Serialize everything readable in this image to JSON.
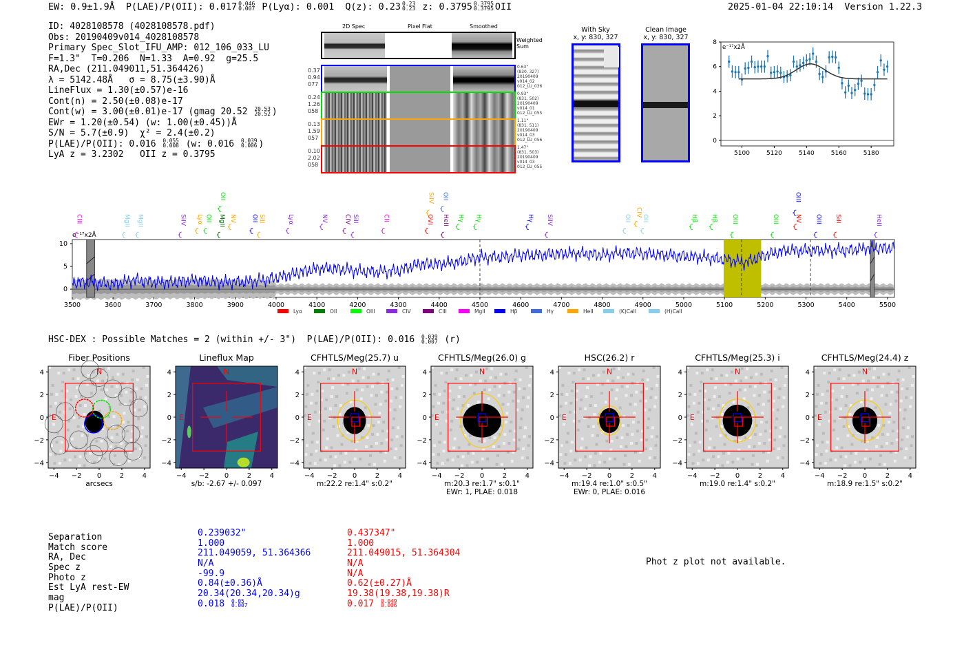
{
  "header": {
    "ew": "EW: 0.9±1.9Å",
    "plae_label": "P(LAE)/P(OII): 0.017",
    "plae_hi": "0.046",
    "plae_lo": "0.007",
    "plya": "P(Lyα): 0.001",
    "qz_label": "Q(z): 0.23",
    "qz_hi": "0.23",
    "qz_lo": "0.23",
    "z_label": "z: 0.3795",
    "z_hi": "0.3795",
    "z_lo": "0.3795",
    "z_line": "OII",
    "timestamp": "2025-01-04 22:10:14",
    "version": "Version 1.22.3"
  },
  "info": {
    "id": "ID: 4028108578 (4028108578.pdf)",
    "obs": "Obs: 20190409v014_4028108578",
    "primary": "Primary Spec_Slot_IFU_AMP: 012_106_033_LU",
    "params": "F=1.3\"  T=0.206  N=1.33  A=0.92  g=25.5",
    "radec": "RA,Dec (211.049011,51.364426)",
    "lambda": "λ = 5142.48Å   σ = 8.75(±3.90)Å",
    "lineflux": "LineFlux = 1.30(±0.57)e-16",
    "cont_n": "Cont(n) = 2.50(±0.08)e-17",
    "cont_w": "Cont(w) = 3.00(±0.01)e-17 (gmag 20.52",
    "cont_w_hi": "20.53",
    "cont_w_lo": "20.52",
    "cont_w_end": ")",
    "ewr": "EWr = 1.20(±0.54) (w: 1.00(±0.45))Å",
    "sn": "S/N = 5.7(±0.9)  χ² = 2.4(±0.2)",
    "plae": "P(LAE)/P(OII): 0.016",
    "plae_hi": "0.055",
    "plae_lo": "0.008",
    "plae_w": "(w: 0.016",
    "plae_w_hi": "0.039",
    "plae_w_lo": "0.006",
    "plae_w_end": ")",
    "z": "LyA z = 3.2302   OII z = 0.3795"
  },
  "spec2d": {
    "col_titles": [
      "2D Spec",
      "Pixel Flat",
      "Smoothed"
    ],
    "weighted_label": "Weighted\nSum",
    "rows": [
      {
        "color": "#0000ff",
        "left": "0.37\n0.94\n077",
        "right": "0.63\"\n(830, 327)\n20190409\nv014_02\n012_LU_036"
      },
      {
        "color": "#00e000",
        "left": "0.24\n1.26\n058",
        "right": "0.93\"\n(831, 502)\n20190409\nv014_01\n012_LU_055"
      },
      {
        "color": "#ffa500",
        "left": "0.13\n1.59\n057",
        "right": "1.11\"\n(831, 511)\n20190409\nv014_03\n012_LU_056"
      },
      {
        "color": "#ff0000",
        "left": "0.10\n2.02\n058",
        "right": "1.47\"\n(831, 503)\n20190409\nv014_03\n012_LU_055"
      }
    ]
  },
  "cutouts": [
    {
      "title": "With Sky\nx, y: 830, 327"
    },
    {
      "title": "Clean Image\nx, y: 830, 327"
    }
  ],
  "chart_data": [
    {
      "type": "scatter",
      "title": "",
      "ylabel": "e⁻¹⁷x2Å",
      "xlim": [
        5087,
        5194
      ],
      "ylim": [
        -0.45,
        8
      ],
      "xticks": [
        "5100",
        "5120",
        "5140",
        "5160",
        "5180"
      ],
      "yticks": [
        "0",
        "2",
        "4",
        "6",
        "8"
      ],
      "x": [
        5092,
        5094,
        5096,
        5098,
        5100,
        5102,
        5104,
        5106,
        5108,
        5110,
        5112,
        5114,
        5116,
        5118,
        5120,
        5122,
        5124,
        5126,
        5128,
        5130,
        5132,
        5134,
        5136,
        5138,
        5140,
        5142,
        5144,
        5146,
        5148,
        5150,
        5152,
        5154,
        5156,
        5158,
        5160,
        5162,
        5164,
        5166,
        5168,
        5170,
        5172,
        5174,
        5176,
        5178,
        5180,
        5182,
        5184,
        5186,
        5188,
        5190
      ],
      "y": [
        6.4,
        5.6,
        5.55,
        5.55,
        4.95,
        5.85,
        5.9,
        6.4,
        5.95,
        6.0,
        6.0,
        6.0,
        6.85,
        5.5,
        5.55,
        5.6,
        5.5,
        5.15,
        5.2,
        5.3,
        6.4,
        6.0,
        6.1,
        6.3,
        6.5,
        6.6,
        7.05,
        6.4,
        5.4,
        5.15,
        5.6,
        6.75,
        6.8,
        6.75,
        5.9,
        4.65,
        3.9,
        4.45,
        3.85,
        4.1,
        4.6,
        4.85,
        3.8,
        3.75,
        3.75,
        4.5,
        5.55,
        6.5,
        5.75,
        6.0
      ],
      "yerr": 0.5,
      "fit": {
        "continuum": 5.0,
        "center": 5142.48,
        "sigma": 8.75,
        "amplitude": 1.22,
        "range": [
          5098,
          5190
        ]
      },
      "point_color": "#1f77b4",
      "fit_color": "#333333"
    },
    {
      "type": "line",
      "ylabel": "e⁻¹⁷x2Å",
      "xlim": [
        3500,
        5517
      ],
      "ylim": [
        -1.8,
        10.9
      ],
      "xticks": [
        "3500",
        "3600",
        "3700",
        "3800",
        "3900",
        "4000",
        "4100",
        "4200",
        "4300",
        "4400",
        "4500",
        "4600",
        "4700",
        "4800",
        "4900",
        "5000",
        "5100",
        "5200",
        "5300",
        "5400",
        "5500"
      ],
      "yticks": [
        "0",
        "5",
        "10"
      ],
      "x_anchor": [
        3500,
        3550,
        3600,
        3650,
        3700,
        3750,
        3800,
        3850,
        3900,
        3950,
        4000,
        4050,
        4100,
        4150,
        4200,
        4250,
        4300,
        4350,
        4400,
        4450,
        4500,
        4550,
        4600,
        4650,
        4700,
        4750,
        4800,
        4850,
        4900,
        4950,
        5000,
        5050,
        5100,
        5150,
        5200,
        5250,
        5300,
        5350,
        5400,
        5450,
        5500
      ],
      "flux_anchor": [
        1.5,
        1.5,
        1.0,
        2.0,
        1.5,
        1.5,
        2.0,
        1.5,
        1.5,
        1.8,
        2.5,
        3.5,
        4.5,
        4.5,
        4.0,
        3.8,
        4.0,
        5.5,
        5.5,
        6.0,
        7.0,
        7.0,
        7.5,
        7.5,
        7.8,
        7.8,
        7.5,
        8.0,
        7.8,
        7.5,
        7.2,
        7.0,
        6.5,
        5.8,
        7.5,
        8.5,
        8.5,
        8.5,
        8.5,
        9.0,
        9.0
      ],
      "line_color": "#0000ff",
      "highlight_range": [
        5098,
        5190
      ],
      "highlight_color": "#bfbf00",
      "dashed_lines": [
        4500,
        5142,
        5311
      ],
      "masked_ranges": [
        [
          3535,
          3555
        ],
        [
          5458,
          5468
        ]
      ],
      "line_labels": [
        {
          "name": "CIII",
          "wave": 3508,
          "color": "#ff00ff",
          "row": 0
        },
        {
          "name": "MgII",
          "wave": 3625,
          "color": "#87ceeb",
          "row": 0
        },
        {
          "name": "MgII",
          "wave": 3658,
          "color": "#87ceeb",
          "row": 0
        },
        {
          "name": "SiIV",
          "wave": 3763,
          "color": "#8a2be2",
          "row": 0
        },
        {
          "name": "Lyα",
          "wave": 3804,
          "color": "#ffa500",
          "row": 0
        },
        {
          "name": "OII",
          "wave": 3825,
          "color": "#00e000",
          "row": 0
        },
        {
          "name": "MgII",
          "wave": 3858,
          "color": "#006400",
          "row": 0
        },
        {
          "name": "OII",
          "wave": 3860,
          "color": "#00e000",
          "row": 1
        },
        {
          "name": "NV",
          "wave": 3885,
          "color": "#ffa500",
          "row": 0
        },
        {
          "name": "OII",
          "wave": 3938,
          "color": "#0000ff",
          "row": 0
        },
        {
          "name": "SiII",
          "wave": 3956,
          "color": "#ffa500",
          "row": 0
        },
        {
          "name": "Lyα",
          "wave": 4027,
          "color": "#8a2be2",
          "row": 0
        },
        {
          "name": "NV",
          "wave": 4110,
          "color": "#8a2be2",
          "row": 0
        },
        {
          "name": "CIV",
          "wave": 4166,
          "color": "#800080",
          "row": 0
        },
        {
          "name": "SiII",
          "wave": 4186,
          "color": "#8a2be2",
          "row": 0
        },
        {
          "name": "CII",
          "wave": 4261,
          "color": "#ff00ff",
          "row": 0
        },
        {
          "name": "OVI",
          "wave": 4368,
          "color": "#ff0000",
          "row": 0
        },
        {
          "name": "SiIV",
          "wave": 4371,
          "color": "#ffa500",
          "row": 1
        },
        {
          "name": "OII",
          "wave": 4406,
          "color": "#4169e1",
          "row": 1
        },
        {
          "name": "HeII",
          "wave": 4407,
          "color": "#800080",
          "row": 0
        },
        {
          "name": "Hγ",
          "wave": 4444,
          "color": "#00e000",
          "row": 0
        },
        {
          "name": "Hγ",
          "wave": 4487,
          "color": "#00e000",
          "row": 0
        },
        {
          "name": "Hγ",
          "wave": 4615,
          "color": "#0000ff",
          "row": 0
        },
        {
          "name": "SiIV",
          "wave": 4662,
          "color": "#8a2be2",
          "row": 0
        },
        {
          "name": "OII",
          "wave": 4853,
          "color": "#87ceeb",
          "row": 0
        },
        {
          "name": "CIV",
          "wave": 4881,
          "color": "#ffa500",
          "row": 0
        },
        {
          "name": "OII",
          "wave": 4897,
          "color": "#87ceeb",
          "row": 0
        },
        {
          "name": "Hβ",
          "wave": 5017,
          "color": "#00e000",
          "row": 0
        },
        {
          "name": "Hβ",
          "wave": 5066,
          "color": "#00e000",
          "row": 0
        },
        {
          "name": "OIII",
          "wave": 5117,
          "color": "#00e000",
          "row": 0
        },
        {
          "name": "OIII",
          "wave": 5216,
          "color": "#00e000",
          "row": 0
        },
        {
          "name": "NV",
          "wave": 5272,
          "color": "#ff0000",
          "row": 0
        },
        {
          "name": "OIII",
          "wave": 5271,
          "color": "#0000ff",
          "row": 1
        },
        {
          "name": "OIII",
          "wave": 5322,
          "color": "#0000ff",
          "row": 0
        },
        {
          "name": "SiII",
          "wave": 5370,
          "color": "#ff0000",
          "row": 0
        },
        {
          "name": "HeII",
          "wave": 5470,
          "color": "#8a2be2",
          "row": 0
        }
      ],
      "legend": [
        {
          "label": "Lyα",
          "color": "#ff0000"
        },
        {
          "label": "OII",
          "color": "#008000"
        },
        {
          "label": "OIII",
          "color": "#00ff00"
        },
        {
          "label": "CIV",
          "color": "#8a2be2"
        },
        {
          "label": "CIII",
          "color": "#800080"
        },
        {
          "label": "MgII",
          "color": "#ff00ff"
        },
        {
          "label": "Hβ",
          "color": "#0000ff"
        },
        {
          "label": "Hγ",
          "color": "#4169e1"
        },
        {
          "label": "HeII",
          "color": "#ffa500"
        },
        {
          "label": "(K)CaII",
          "color": "#87ceeb"
        },
        {
          "label": "(H)CaII",
          "color": "#87ceeb"
        }
      ]
    }
  ],
  "matches": {
    "title": "HSC-DEX : Possible Matches = 2 (within +/- 3\")  P(LAE)/P(OII): 0.016",
    "title_hi": "0.039",
    "title_lo": "0.007",
    "title_end": "(r)",
    "axis_ticks": [
      "−4",
      "−2",
      "0",
      "2",
      "4"
    ],
    "north": "N",
    "east": "E",
    "panels": [
      {
        "title": "Fiber Positions",
        "caption": [
          "arcsecs"
        ],
        "kind": "fiber"
      },
      {
        "title": "Lineflux Map",
        "caption": [
          "s/b: -2.67 +/- 0.097"
        ],
        "kind": "lineflux"
      },
      {
        "title": "CFHTLS/Meg(25.7) u",
        "caption": [
          "m:22.2  re:1.4\"  s:0.2\""
        ],
        "kind": "image"
      },
      {
        "title": "CFHTLS/Meg(26.0) g",
        "caption": [
          "m:20.3  re:1.7\"  s:0.1\"",
          "EWr: 1, PLAE: 0.018"
        ],
        "kind": "image"
      },
      {
        "title": "HSC(26.2) r",
        "caption": [
          "m:19.4  re:1.0\"  s:0.5\"",
          "EWr: 0, PLAE: 0.016"
        ],
        "kind": "image"
      },
      {
        "title": "CFHTLS/Meg(25.3) i",
        "caption": [
          "m:19.0  re:1.4\"  s:0.2\""
        ],
        "kind": "image"
      },
      {
        "title": "CFHTLS/Meg(24.4) z",
        "caption": [
          "m:18.9  re:1.5\"  s:0.2\""
        ],
        "kind": "image"
      }
    ]
  },
  "table": {
    "labels": [
      "Separation",
      "Match score",
      "RA, Dec",
      "Spec z",
      "Photo z",
      "Est LyA rest-EW",
      "mag",
      "P(LAE)/P(OII)"
    ],
    "blue": {
      "color": "#0000ff",
      "values": [
        "0.239032\"",
        "1.000",
        "211.049059, 51.364366",
        "N/A",
        "-99.9",
        "0.84(±0.36)Å",
        "20.34(20.34,20.34)g"
      ],
      "plae": "0.018",
      "plae_hi": "0.05",
      "plae_lo": "0.007"
    },
    "red": {
      "color": "#ff0000",
      "values": [
        "0.437347\"",
        "1.000",
        "211.049015, 51.364304",
        "N/A",
        "N/A",
        "0.62(±0.27)Å",
        "19.38(19.38,19.38)R"
      ],
      "plae": "0.017",
      "plae_hi": "0.049",
      "plae_lo": "0.006"
    },
    "phot_z_note": "Phot z plot not available."
  }
}
